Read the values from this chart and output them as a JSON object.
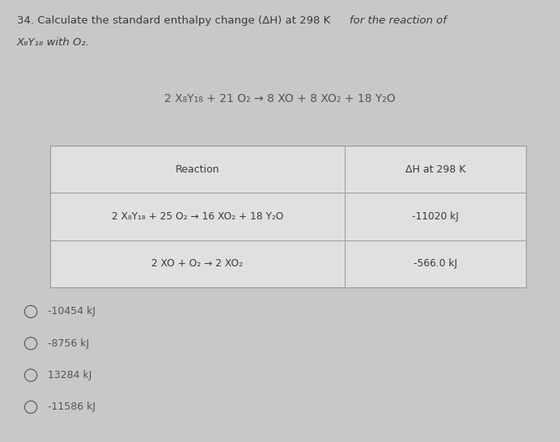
{
  "question_number": "34.",
  "question_text_line1": "Calculate the standard enthalpy change (ΔH) at 298 K for the reaction of",
  "question_text_line2": "X₈Y₁₈ with O₂.",
  "main_reaction": "2 X₈Y₁₈ + 21 O₂ → 8 XO + 8 XO₂ + 18 Y₂O",
  "table_headers": [
    "Reaction",
    "ΔH at 298 K"
  ],
  "table_row1_reaction": "2 X₈Y₁₈ + 25 O₂ → 16 XO₂ + 18 Y₂O",
  "table_row1_dh": "-11020 kJ",
  "table_row2_reaction": "2 XO + O₂ → 2 XO₂",
  "table_row2_dh": "-566.0 kJ",
  "option_texts": [
    "-10454 kJ",
    "-8756 kJ",
    "13284 kJ",
    "-11586 kJ"
  ],
  "bg_color": "#c8c8c8",
  "table_bg": "#e0e0e0",
  "table_border": "#999999",
  "text_color": "#3a3a3a",
  "option_color": "#555555",
  "reaction_text_color": "#555555"
}
